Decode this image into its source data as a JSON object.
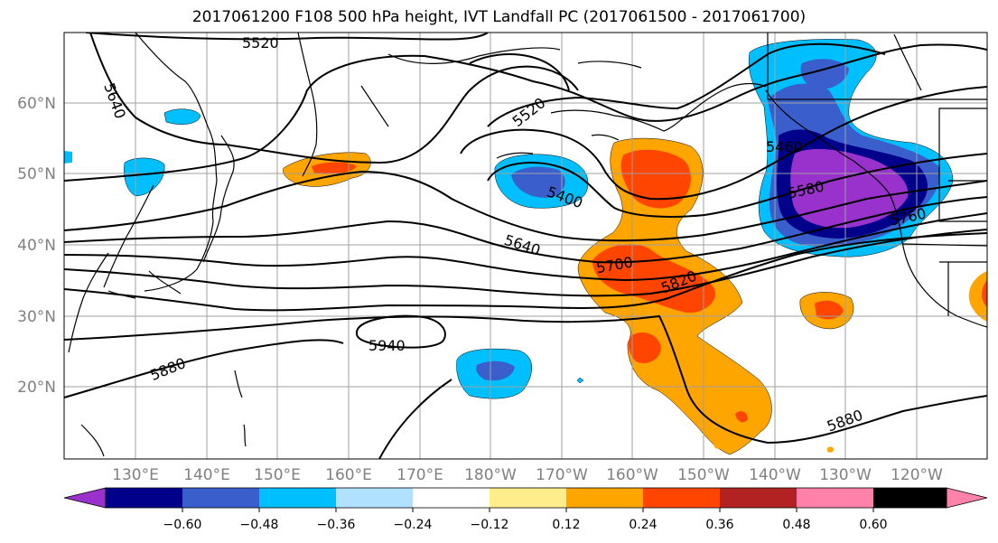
{
  "title": "2017061200 F108 500 hPa height, IVT Landfall PC (2017061500 - 2017061700)",
  "map": {
    "lat_labels": [
      "60°N",
      "50°N",
      "40°N",
      "30°N",
      "20°N"
    ],
    "lon_labels": [
      "130°E",
      "140°E",
      "150°E",
      "160°E",
      "170°E",
      "180°W",
      "170°W",
      "160°W",
      "150°W",
      "140°W",
      "130°W",
      "120°W"
    ],
    "contour_labels": [
      "5520",
      "5640",
      "5520",
      "5400",
      "5460",
      "5580",
      "5640",
      "5700",
      "5820",
      "5760",
      "5880",
      "5940",
      "5880"
    ]
  },
  "colorbar": {
    "colors": [
      "#9932cc",
      "#00008b",
      "#3a5fcd",
      "#00bfff",
      "#b0e2ff",
      "#ffffff",
      "#ffec8b",
      "#ffa500",
      "#ff4500",
      "#b22222",
      "#ff82ab"
    ],
    "tick_labels": [
      "−0.60",
      "−0.48",
      "−0.36",
      "−0.24",
      "−0.12",
      "0.12",
      "0.24",
      "0.36",
      "0.48",
      "0.60"
    ]
  }
}
